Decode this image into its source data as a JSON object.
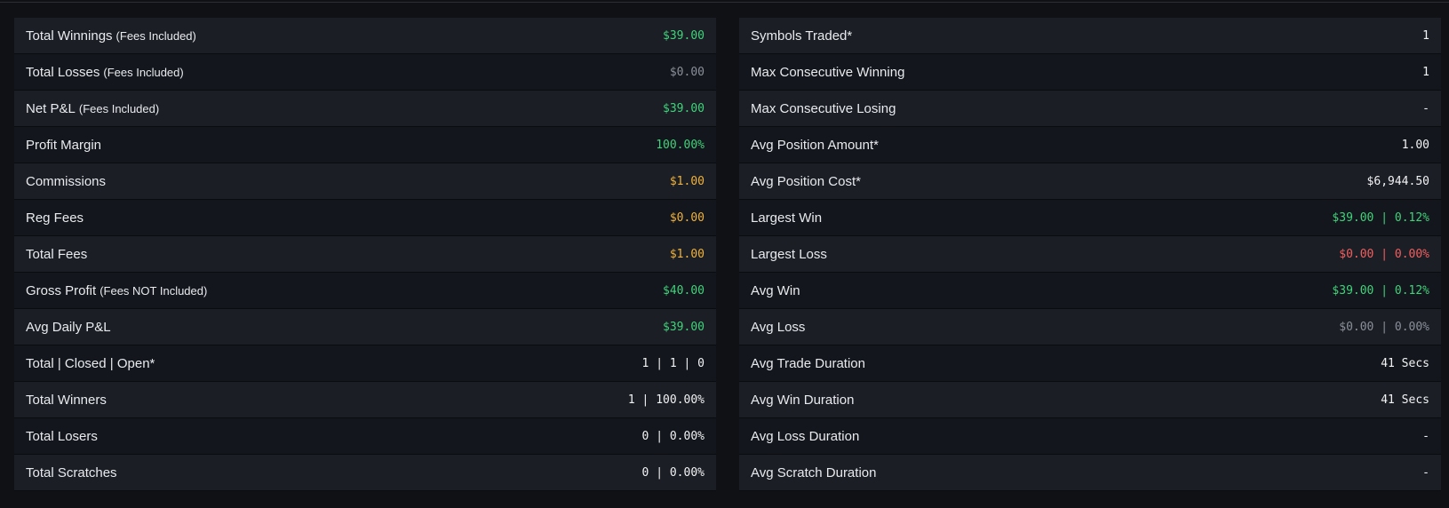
{
  "colors": {
    "positive": "#3fd47a",
    "neutral": "#8a8f99",
    "fees": "#f0b23c",
    "negative": "#f25f5f",
    "default": "#f2f3f5"
  },
  "left_stats": [
    {
      "label": "Total Winnings",
      "sub": "(Fees Included)",
      "value": "$39.00",
      "tone": "green"
    },
    {
      "label": "Total Losses",
      "sub": "(Fees Included)",
      "value": "$0.00",
      "tone": "gray"
    },
    {
      "label": "Net P&L",
      "sub": "(Fees Included)",
      "value": "$39.00",
      "tone": "green"
    },
    {
      "label": "Profit Margin",
      "sub": "",
      "value": "100.00%",
      "tone": "green"
    },
    {
      "label": "Commissions",
      "sub": "",
      "value": "$1.00",
      "tone": "orange"
    },
    {
      "label": "Reg Fees",
      "sub": "",
      "value": "$0.00",
      "tone": "orange"
    },
    {
      "label": "Total Fees",
      "sub": "",
      "value": "$1.00",
      "tone": "orange"
    },
    {
      "label": "Gross Profit",
      "sub": "(Fees NOT Included)",
      "value": "$40.00",
      "tone": "green"
    },
    {
      "label": "Avg Daily P&L",
      "sub": "",
      "value": "$39.00",
      "tone": "green"
    },
    {
      "label": "Total | Closed | Open*",
      "sub": "",
      "value": "1 | 1 | 0",
      "tone": "white"
    },
    {
      "label": "Total Winners",
      "sub": "",
      "value": "1 | 100.00%",
      "tone": "white"
    },
    {
      "label": "Total Losers",
      "sub": "",
      "value": "0 | 0.00%",
      "tone": "white"
    },
    {
      "label": "Total Scratches",
      "sub": "",
      "value": "0 | 0.00%",
      "tone": "white"
    }
  ],
  "right_stats": [
    {
      "label": "Symbols Traded*",
      "sub": "",
      "value": "1",
      "tone": "white"
    },
    {
      "label": "Max Consecutive Winning",
      "sub": "",
      "value": "1",
      "tone": "white"
    },
    {
      "label": "Max Consecutive Losing",
      "sub": "",
      "value": "-",
      "tone": "white"
    },
    {
      "label": "Avg Position Amount*",
      "sub": "",
      "value": "1.00",
      "tone": "white"
    },
    {
      "label": "Avg Position Cost*",
      "sub": "",
      "value": "$6,944.50",
      "tone": "white"
    },
    {
      "label": "Largest Win",
      "sub": "",
      "value": "$39.00 | 0.12%",
      "tone": "green"
    },
    {
      "label": "Largest Loss",
      "sub": "",
      "value": "$0.00 | 0.00%",
      "tone": "red"
    },
    {
      "label": "Avg Win",
      "sub": "",
      "value": "$39.00 | 0.12%",
      "tone": "green"
    },
    {
      "label": "Avg Loss",
      "sub": "",
      "value": "$0.00 | 0.00%",
      "tone": "gray"
    },
    {
      "label": "Avg Trade Duration",
      "sub": "",
      "value": "41 Secs",
      "tone": "white"
    },
    {
      "label": "Avg Win Duration",
      "sub": "",
      "value": "41 Secs",
      "tone": "white"
    },
    {
      "label": "Avg Loss Duration",
      "sub": "",
      "value": "-",
      "tone": "white"
    },
    {
      "label": "Avg Scratch Duration",
      "sub": "",
      "value": "-",
      "tone": "white"
    }
  ]
}
